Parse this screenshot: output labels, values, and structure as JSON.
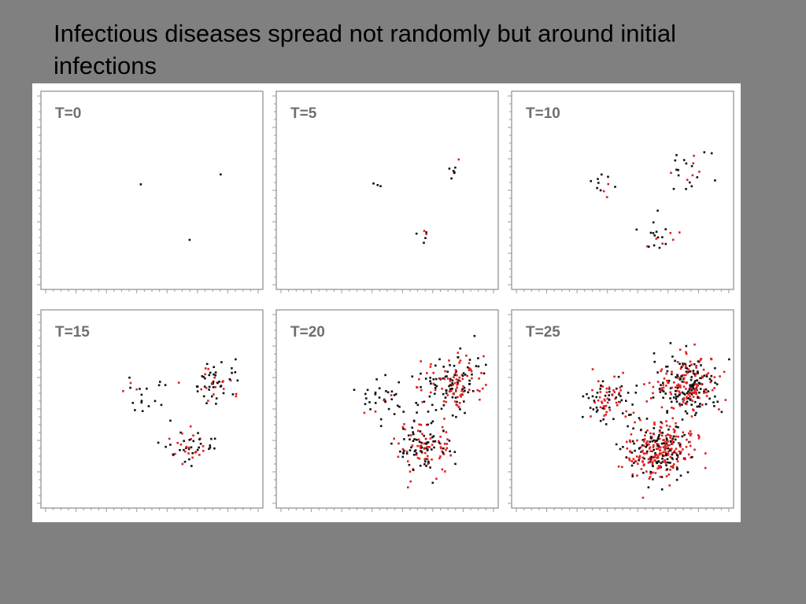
{
  "slide": {
    "title": "Infectious diseases spread not randomly but around initial infections"
  },
  "colors": {
    "background": "#808080",
    "figure_background": "#ffffff",
    "dot_black": "#111111",
    "dot_red": "#e02020",
    "label_gray": "#6f6f6f"
  },
  "chart_data": {
    "type": "scatter",
    "layout": "small multiples, 2 rows x 3 columns",
    "axis_tick_labels": "none",
    "panels": [
      {
        "label": "T=0",
        "clusters": [
          {
            "x": 0.45,
            "y": 0.53,
            "spread": 0.0,
            "black": 1,
            "red": 0
          },
          {
            "x": 0.81,
            "y": 0.58,
            "spread": 0.0,
            "black": 1,
            "red": 0
          },
          {
            "x": 0.67,
            "y": 0.25,
            "spread": 0.0,
            "black": 1,
            "red": 0
          }
        ]
      },
      {
        "label": "T=5",
        "clusters": [
          {
            "x": 0.45,
            "y": 0.53,
            "spread": 0.012,
            "black": 3,
            "red": 0
          },
          {
            "x": 0.8,
            "y": 0.59,
            "spread": 0.022,
            "black": 6,
            "red": 1
          },
          {
            "x": 0.67,
            "y": 0.27,
            "spread": 0.022,
            "black": 4,
            "red": 2
          }
        ]
      },
      {
        "label": "T=10",
        "clusters": [
          {
            "x": 0.43,
            "y": 0.53,
            "spread": 0.04,
            "black": 8,
            "red": 3
          },
          {
            "x": 0.8,
            "y": 0.59,
            "spread": 0.05,
            "black": 16,
            "red": 6
          },
          {
            "x": 0.66,
            "y": 0.28,
            "spread": 0.045,
            "black": 14,
            "red": 6
          }
        ]
      },
      {
        "label": "T=15",
        "clusters": [
          {
            "x": 0.46,
            "y": 0.55,
            "spread": 0.045,
            "black": 16,
            "red": 3
          },
          {
            "x": 0.8,
            "y": 0.64,
            "spread": 0.055,
            "black": 38,
            "red": 18
          },
          {
            "x": 0.66,
            "y": 0.3,
            "spread": 0.05,
            "black": 30,
            "red": 20
          }
        ]
      },
      {
        "label": "T=20",
        "clusters": [
          {
            "x": 0.47,
            "y": 0.55,
            "spread": 0.05,
            "black": 30,
            "red": 4
          },
          {
            "x": 0.8,
            "y": 0.63,
            "spread": 0.07,
            "black": 80,
            "red": 80
          },
          {
            "x": 0.67,
            "y": 0.3,
            "spread": 0.065,
            "black": 70,
            "red": 70
          }
        ]
      },
      {
        "label": "T=25",
        "clusters": [
          {
            "x": 0.44,
            "y": 0.55,
            "spread": 0.06,
            "black": 45,
            "red": 45
          },
          {
            "x": 0.8,
            "y": 0.62,
            "spread": 0.075,
            "black": 130,
            "red": 130
          },
          {
            "x": 0.67,
            "y": 0.29,
            "spread": 0.07,
            "black": 120,
            "red": 200
          }
        ]
      }
    ]
  }
}
